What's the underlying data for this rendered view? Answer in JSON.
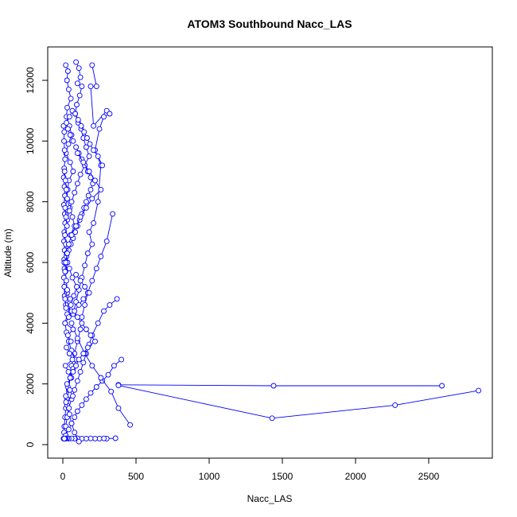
{
  "chart_data": {
    "type": "scatter",
    "title": "ATOM3 Southbound Nacc_LAS",
    "xlabel": "Nacc_LAS",
    "ylabel": "Altitude (m)",
    "xlim": [
      0,
      2850
    ],
    "ylim": [
      0,
      12600
    ],
    "x_ticks": [
      0,
      500,
      1000,
      1500,
      2000,
      2500
    ],
    "y_ticks": [
      0,
      2000,
      4000,
      6000,
      8000,
      10000,
      12000
    ],
    "grid": false,
    "legend": "none",
    "color": "#0000ff",
    "marker": "open-circle",
    "connected": true,
    "series": [
      {
        "x": [
          20,
          35,
          28,
          40,
          55,
          30,
          25,
          45,
          60,
          38,
          22,
          50,
          70,
          42,
          33,
          27,
          48,
          65,
          80,
          52
        ],
        "y": [
          12500,
          12300,
          12000,
          11700,
          11400,
          11100,
          10800,
          10500,
          10200,
          9900,
          9600,
          9300,
          9000,
          8700,
          8400,
          8100,
          7800,
          7500,
          7200,
          6900
        ]
      },
      {
        "x": [
          90,
          110,
          120,
          100,
          130,
          115,
          95,
          85,
          105,
          125,
          140,
          160,
          180,
          150,
          120,
          100,
          80,
          60,
          45,
          30
        ],
        "y": [
          12600,
          12400,
          12100,
          11900,
          11800,
          11500,
          11200,
          10900,
          10600,
          10400,
          10100,
          9800,
          9500,
          9200,
          8900,
          8600,
          8300,
          8000,
          7700,
          7400
        ]
      },
      {
        "x": [
          200,
          230,
          190,
          210,
          300,
          320,
          280,
          250,
          220,
          260,
          240,
          210,
          180,
          200,
          170,
          150,
          130,
          110,
          90,
          70
        ],
        "y": [
          12500,
          11800,
          11800,
          10500,
          11000,
          10900,
          10800,
          10400,
          9700,
          9200,
          8000,
          7300,
          7000,
          6600,
          6300,
          5900,
          5500,
          5100,
          4700,
          4300
        ]
      },
      {
        "x": [
          5,
          10,
          8,
          12,
          15,
          9,
          6,
          11,
          14,
          7,
          13,
          16,
          10,
          8,
          12,
          9,
          11,
          7,
          10,
          12
        ],
        "y": [
          10500,
          10300,
          10000,
          9700,
          9400,
          9100,
          8800,
          8500,
          8200,
          7900,
          7600,
          7300,
          7000,
          6700,
          6400,
          6100,
          5800,
          5500,
          5200,
          4900
        ]
      },
      {
        "x": [
          340,
          300,
          260,
          230,
          200,
          170,
          150,
          130,
          120,
          100,
          80,
          60,
          50,
          40,
          30,
          20,
          15,
          10,
          8,
          5
        ],
        "y": [
          7600,
          6700,
          6200,
          5800,
          5400,
          5000,
          4600,
          4200,
          3800,
          3400,
          3000,
          2600,
          2200,
          1800,
          1500,
          1200,
          900,
          600,
          400,
          200
        ]
      },
      {
        "x": [
          370,
          320,
          280,
          240,
          200,
          180,
          160,
          140,
          120,
          100,
          80,
          60,
          40,
          30,
          20
        ],
        "y": [
          4800,
          4600,
          4400,
          4000,
          3600,
          3300,
          3000,
          2700,
          2400,
          2100,
          1800,
          1500,
          1200,
          900,
          600
        ]
      },
      {
        "x": [
          400,
          350,
          310,
          270,
          230,
          190,
          160,
          130,
          100,
          80,
          60,
          40,
          20,
          10
        ],
        "y": [
          2800,
          2600,
          2300,
          2100,
          1900,
          1700,
          1500,
          1300,
          1100,
          900,
          700,
          500,
          300,
          200
        ]
      },
      {
        "x": [
          380,
          1440,
          2590
        ],
        "y": [
          1970,
          1940,
          1940
        ]
      },
      {
        "x": [
          2840,
          2270,
          1430,
          380
        ],
        "y": [
          1780,
          1300,
          870,
          1950
        ]
      },
      {
        "x": [
          460,
          380,
          330,
          260,
          200,
          150,
          100,
          60
        ],
        "y": [
          650,
          1200,
          1750,
          2200,
          2600,
          3000,
          3500,
          4000
        ]
      },
      {
        "x": [
          360,
          300,
          280,
          250,
          220,
          190,
          160,
          130,
          100,
          80,
          60,
          40,
          30,
          20,
          15,
          10
        ],
        "y": [
          210,
          200,
          205,
          200,
          200,
          205,
          200,
          200,
          210,
          200,
          205,
          200,
          210,
          200,
          205,
          200
        ]
      },
      {
        "x": [
          110,
          80,
          60,
          45,
          30,
          20,
          35,
          50,
          70,
          90,
          60,
          40,
          25,
          15,
          30,
          55,
          75,
          95,
          65,
          45
        ],
        "y": [
          100,
          400,
          700,
          1000,
          1300,
          1600,
          1900,
          2200,
          2500,
          2800,
          3100,
          3400,
          3700,
          4000,
          4300,
          4600,
          4900,
          5200,
          5500,
          5800
        ]
      },
      {
        "x": [
          10,
          25,
          40,
          55,
          70,
          85,
          100,
          115,
          130,
          145,
          160,
          175,
          190,
          205,
          190,
          170,
          150,
          130,
          110,
          90
        ],
        "y": [
          6000,
          6200,
          6400,
          6600,
          6800,
          7000,
          7200,
          7400,
          7600,
          7800,
          8000,
          8200,
          8400,
          8600,
          8800,
          9000,
          9200,
          9400,
          9600,
          9800
        ]
      },
      {
        "x": [
          70,
          50,
          35,
          25,
          45,
          65,
          85,
          105,
          125,
          145,
          165,
          185,
          210,
          240,
          270
        ],
        "y": [
          10000,
          10200,
          10400,
          10600,
          10800,
          11000,
          10900,
          10700,
          10500,
          10300,
          10100,
          9900,
          9700,
          9500,
          9200
        ]
      },
      {
        "x": [
          30,
          50,
          20,
          60,
          40,
          15,
          70,
          35,
          55,
          25,
          45,
          65,
          18,
          38,
          58,
          28,
          48,
          68,
          22,
          42
        ],
        "y": [
          5000,
          4800,
          4600,
          4400,
          4200,
          4000,
          3800,
          3600,
          3400,
          3200,
          3000,
          2800,
          2600,
          2400,
          2200,
          2000,
          1800,
          1600,
          1400,
          1200
        ]
      },
      {
        "x": [
          90,
          120,
          150,
          180,
          140,
          110,
          80,
          100,
          130,
          160,
          190,
          220,
          170,
          140,
          110,
          90,
          70,
          50
        ],
        "y": [
          5600,
          5400,
          5200,
          5000,
          4800,
          4600,
          4400,
          4200,
          4000,
          3800,
          3600,
          3400,
          3200,
          3000,
          2800,
          2600,
          2400,
          2200
        ]
      },
      {
        "x": [
          12,
          18,
          24,
          30,
          16,
          22,
          28,
          14,
          20,
          26,
          32,
          18,
          24,
          30,
          16,
          22
        ],
        "y": [
          9000,
          8700,
          8400,
          8100,
          7800,
          7500,
          7200,
          6900,
          6600,
          6300,
          6000,
          5700,
          5400,
          5100,
          4800,
          4500
        ]
      },
      {
        "x": [
          100,
          140,
          180,
          220,
          260,
          200,
          160,
          120,
          90,
          60,
          40,
          30,
          20,
          15
        ],
        "y": [
          9600,
          9300,
          9000,
          8700,
          8400,
          8100,
          7800,
          7500,
          7200,
          6900,
          6600,
          6300,
          6000,
          5700
        ]
      }
    ]
  }
}
